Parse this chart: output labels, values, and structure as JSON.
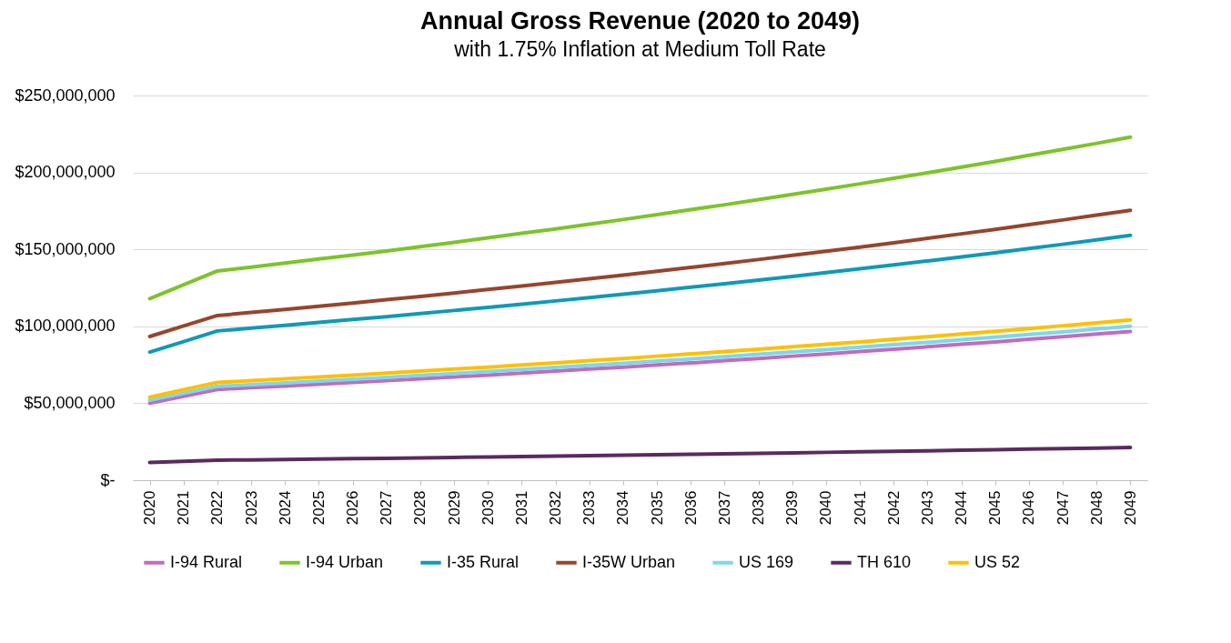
{
  "chart_data": {
    "type": "line",
    "title": "Annual Gross Revenue (2020 to 2049)",
    "subtitle": "with 1.75% Inflation at Medium Toll Rate",
    "categories": [
      "2020",
      "2021",
      "2022",
      "2023",
      "2024",
      "2025",
      "2026",
      "2027",
      "2028",
      "2029",
      "2030",
      "2031",
      "2032",
      "2033",
      "2034",
      "2035",
      "2036",
      "2037",
      "2038",
      "2039",
      "2040",
      "2041",
      "2042",
      "2043",
      "2044",
      "2045",
      "2046",
      "2047",
      "2048",
      "2049"
    ],
    "series": [
      {
        "name": "I-94 Rural",
        "color": "#c06cc0",
        "values": [
          50000000,
          54500000,
          59000000,
          60100000,
          61200000,
          62300000,
          63500000,
          64700000,
          65900000,
          67100000,
          68300000,
          69600000,
          70900000,
          72200000,
          73500000,
          74900000,
          76200000,
          77700000,
          79100000,
          80600000,
          82000000,
          83600000,
          85100000,
          86700000,
          88300000,
          89900000,
          91600000,
          93300000,
          95000000,
          96700000
        ]
      },
      {
        "name": "I-94 Urban",
        "color": "#7dc32a",
        "values": [
          118000000,
          127000000,
          136000000,
          138500000,
          141100000,
          143700000,
          146300000,
          149000000,
          151800000,
          154600000,
          157500000,
          160400000,
          163300000,
          166400000,
          169400000,
          172600000,
          175800000,
          179000000,
          182300000,
          185700000,
          189100000,
          192600000,
          196200000,
          199800000,
          203500000,
          207200000,
          211100000,
          215000000,
          218900000,
          223000000
        ]
      },
      {
        "name": "I-35 Rural",
        "color": "#0e9ab8",
        "values": [
          83300000,
          90100000,
          97000000,
          98800000,
          100600000,
          102500000,
          104400000,
          106300000,
          108300000,
          110300000,
          112300000,
          114400000,
          116500000,
          118700000,
          120800000,
          123100000,
          125400000,
          127700000,
          130000000,
          132400000,
          134900000,
          137400000,
          139900000,
          142500000,
          145100000,
          147800000,
          150500000,
          153300000,
          156200000,
          159100000
        ]
      },
      {
        "name": "I-35W Urban",
        "color": "#96452c",
        "values": [
          93400000,
          100200000,
          107000000,
          109000000,
          111000000,
          113000000,
          115100000,
          117300000,
          119400000,
          121600000,
          123900000,
          126200000,
          128500000,
          130900000,
          133300000,
          135800000,
          138300000,
          140800000,
          143400000,
          146100000,
          148800000,
          151500000,
          154300000,
          157200000,
          160100000,
          163000000,
          166100000,
          169100000,
          172300000,
          175400000
        ]
      },
      {
        "name": "US 169",
        "color": "#7fd7e8",
        "values": [
          52000000,
          56500000,
          61000000,
          62100000,
          63300000,
          64400000,
          65600000,
          66800000,
          68100000,
          69300000,
          70600000,
          71900000,
          73300000,
          74600000,
          76000000,
          77400000,
          78800000,
          80300000,
          81800000,
          83300000,
          84800000,
          86400000,
          88000000,
          89600000,
          91300000,
          93000000,
          94700000,
          96400000,
          98200000,
          100000000
        ]
      },
      {
        "name": "TH 610",
        "color": "#5a2a5e",
        "values": [
          11500000,
          12300000,
          13000000,
          13200000,
          13500000,
          13700000,
          14000000,
          14200000,
          14500000,
          14800000,
          15100000,
          15300000,
          15600000,
          15900000,
          16200000,
          16500000,
          16800000,
          17100000,
          17400000,
          17700000,
          18100000,
          18400000,
          18800000,
          19100000,
          19500000,
          19800000,
          20200000,
          20500000,
          20900000,
          21300000
        ]
      },
      {
        "name": "US 52",
        "color": "#ffc000",
        "values": [
          54000000,
          58800000,
          63500000,
          64700000,
          65900000,
          67100000,
          68300000,
          69600000,
          70900000,
          72200000,
          73500000,
          74900000,
          76300000,
          77700000,
          79100000,
          80600000,
          82100000,
          83600000,
          85100000,
          86700000,
          88300000,
          89900000,
          91600000,
          93300000,
          95000000,
          96800000,
          98600000,
          100400000,
          102200000,
          104100000
        ]
      }
    ],
    "ylim": [
      0,
      250000000
    ],
    "yticks": [
      {
        "value": 0,
        "label": "$-"
      },
      {
        "value": 50000000,
        "label": "$50,000,000"
      },
      {
        "value": 100000000,
        "label": "$100,000,000"
      },
      {
        "value": 150000000,
        "label": "$150,000,000"
      },
      {
        "value": 200000000,
        "label": "$200,000,000"
      },
      {
        "value": 250000000,
        "label": "$250,000,000"
      }
    ],
    "grid": "y",
    "legend": "bottom",
    "line_style": "solid"
  }
}
